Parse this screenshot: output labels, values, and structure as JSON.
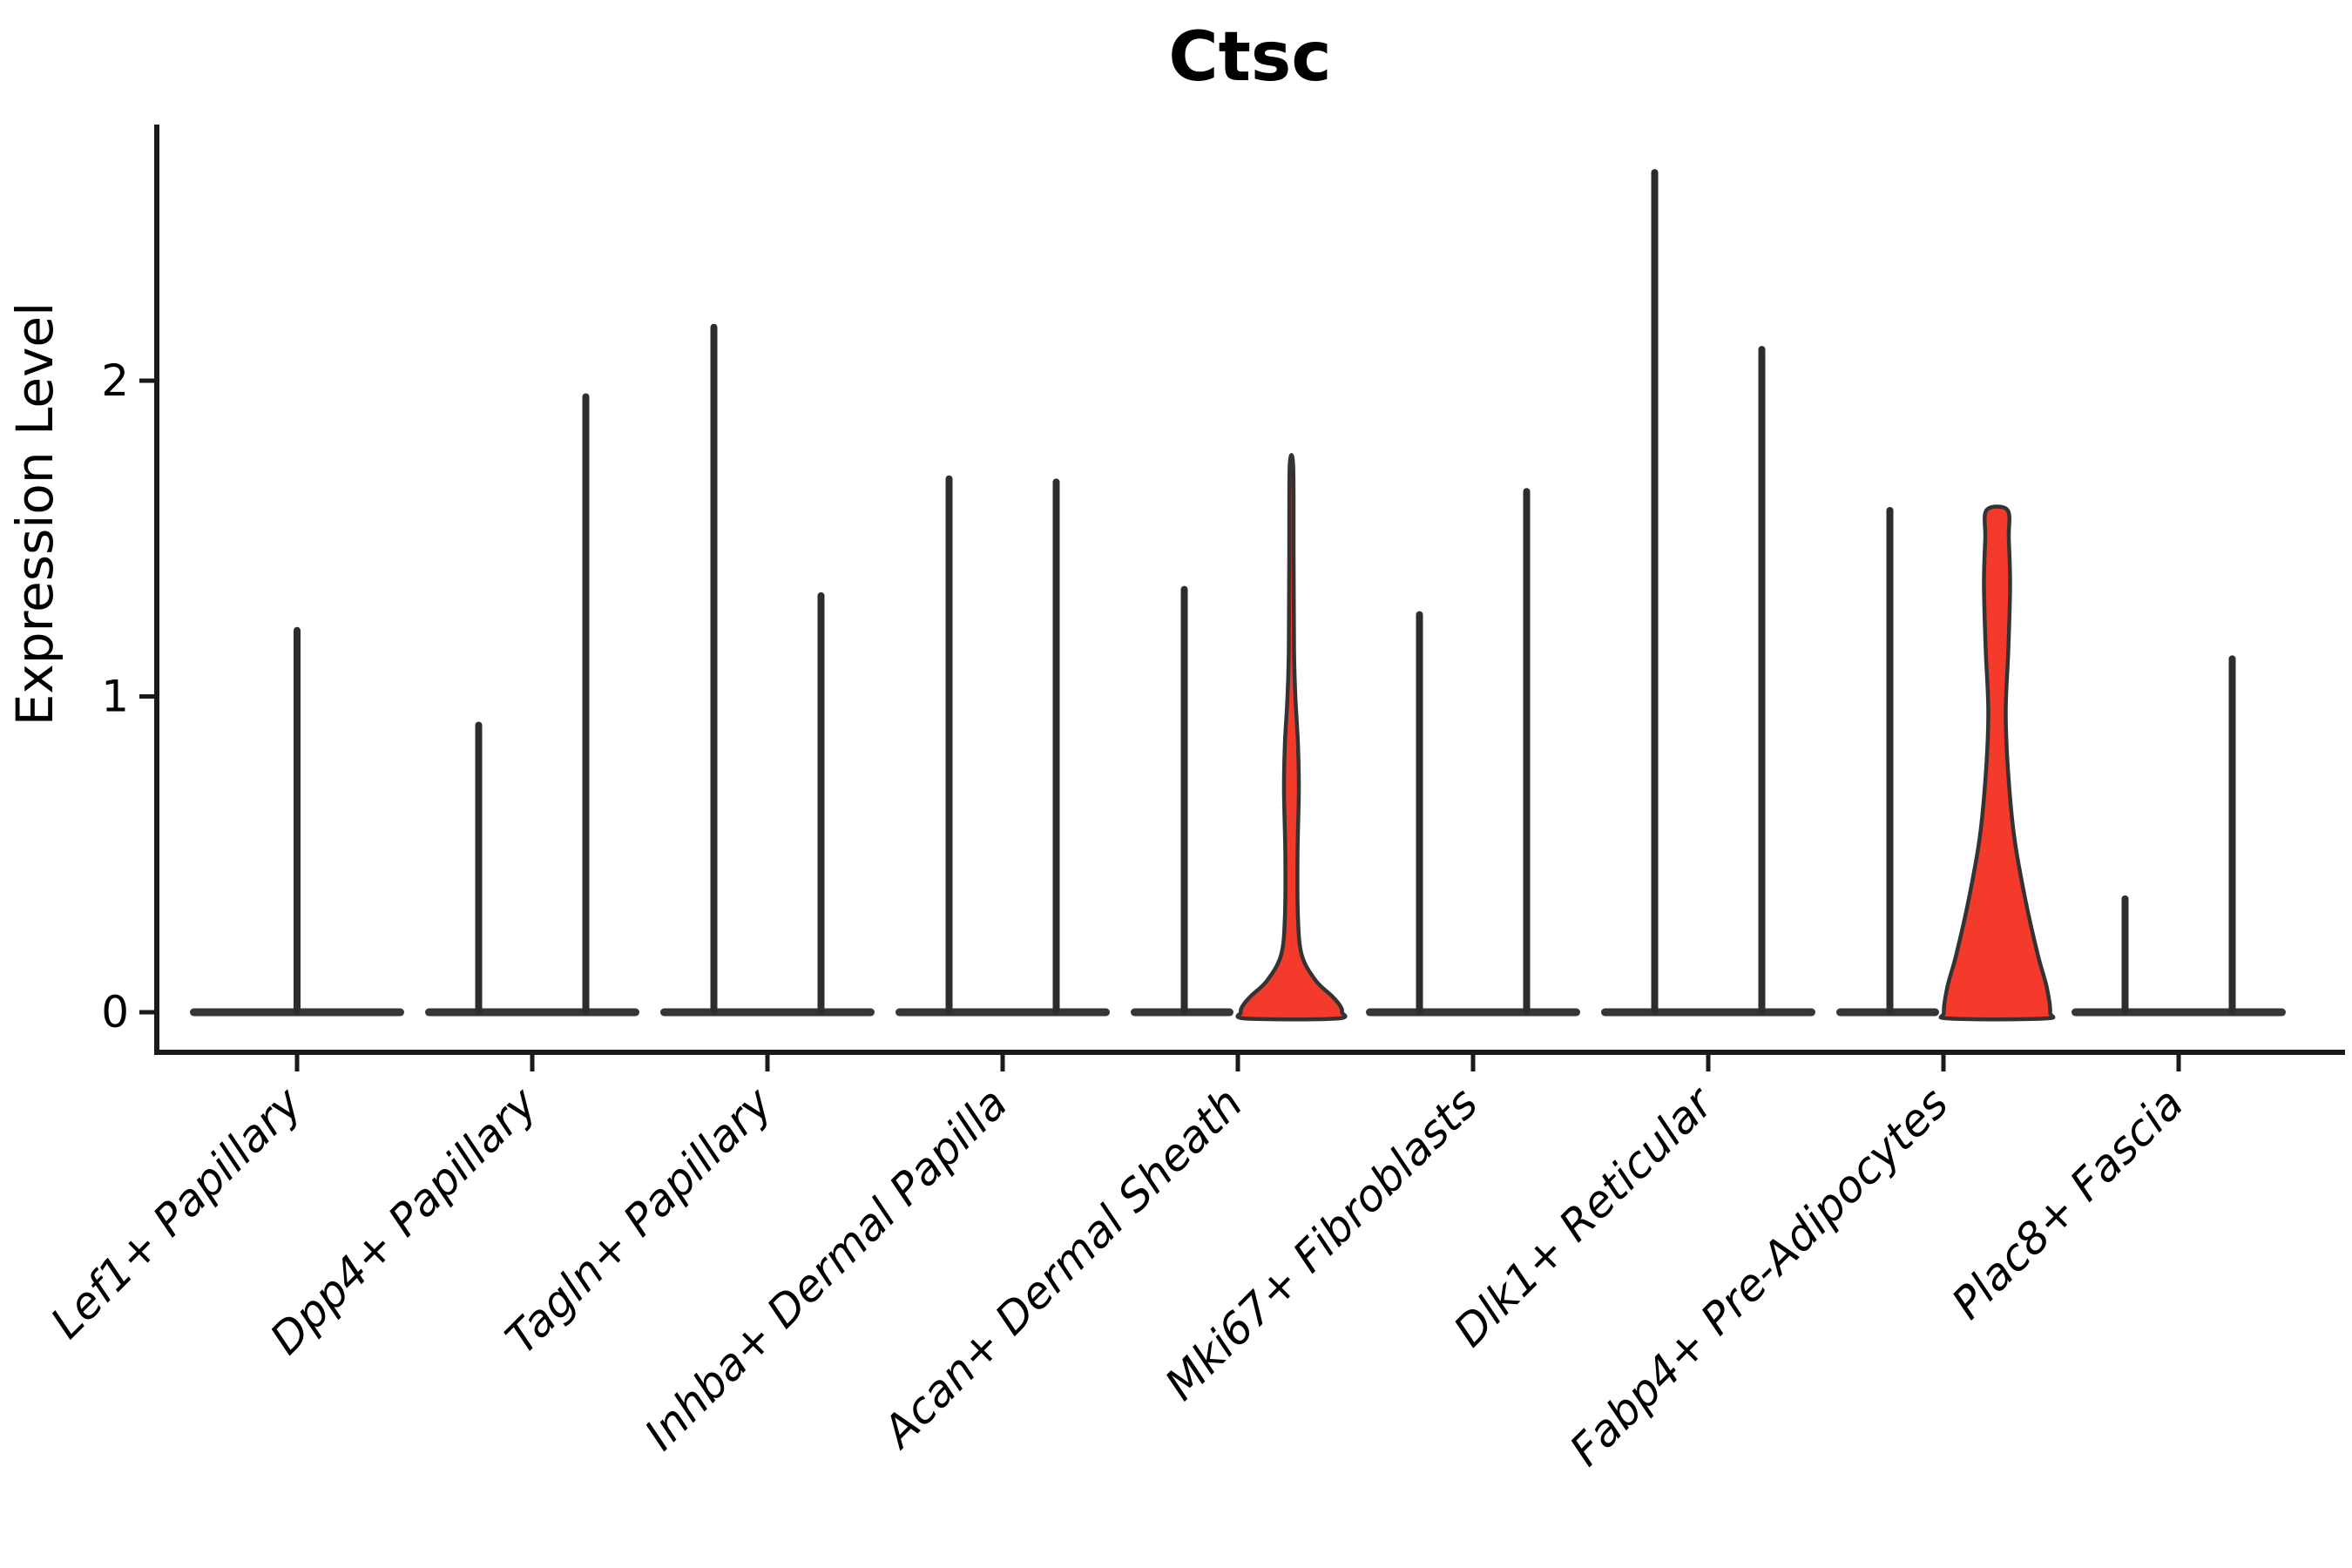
{
  "chart_data": {
    "type": "violin",
    "title": "Ctsc",
    "ylabel": "Expression Level",
    "xlabel": "",
    "yticks": [
      0,
      1,
      2
    ],
    "ylim": [
      -0.13,
      2.81
    ],
    "grid": false,
    "legend": "none",
    "categories": [
      "Lef1+ Papillary",
      "Dpp4+ Papillary",
      "Tagln+ Papillary",
      "Inhba+ Dermal Papilla",
      "Acan+ Dermal Sheath",
      "Mki67+ Fibroblasts",
      "Dlk1+ Reticular",
      "Fabp4+ Pre-Adipocytes",
      "Plac8+ Fascia"
    ],
    "colors": {
      "highlight_fill": "#f43b2b",
      "ink": "#2d2d2d",
      "body_bar": "#363636",
      "axis": "#1a1a1a",
      "outline": "#333333"
    },
    "description": "Per category: violins hug 0 (wide flat base) with thin density spikes up to the max expression value; two violins are red-filled with visible density bodies.",
    "violins": [
      {
        "category": 0,
        "slot": "full",
        "max": 1.22,
        "fill": "white",
        "profile": "spike"
      },
      {
        "category": 1,
        "slot": "left",
        "max": 0.92,
        "fill": "white",
        "profile": "spike"
      },
      {
        "category": 1,
        "slot": "right",
        "max": 1.96,
        "fill": "white",
        "profile": "spike"
      },
      {
        "category": 2,
        "slot": "left",
        "max": 2.18,
        "fill": "white",
        "profile": "spike"
      },
      {
        "category": 2,
        "slot": "right",
        "max": 1.33,
        "fill": "white",
        "profile": "spike"
      },
      {
        "category": 3,
        "slot": "left",
        "max": 1.7,
        "fill": "white",
        "profile": "spike"
      },
      {
        "category": 3,
        "slot": "right",
        "max": 1.69,
        "fill": "white",
        "profile": "spike"
      },
      {
        "category": 4,
        "slot": "left",
        "max": 1.35,
        "fill": "white",
        "profile": "spike"
      },
      {
        "category": 4,
        "slot": "right",
        "max": 1.73,
        "fill": "#f43b2b",
        "profile": "shaped",
        "shape": [
          [
            1.73,
            2
          ],
          [
            1.45,
            2.5
          ],
          [
            1.15,
            3
          ],
          [
            1.0,
            4.5
          ],
          [
            0.85,
            7.5
          ],
          [
            0.7,
            8.5
          ],
          [
            0.5,
            7
          ],
          [
            0.3,
            7.5
          ],
          [
            0.18,
            12
          ],
          [
            0.1,
            28
          ],
          [
            0.05,
            47
          ],
          [
            0.02,
            56
          ],
          [
            0.0,
            58
          ],
          [
            -0.02,
            52
          ]
        ]
      },
      {
        "category": 5,
        "slot": "left",
        "max": 1.27,
        "fill": "white",
        "profile": "spike"
      },
      {
        "category": 5,
        "slot": "right",
        "max": 1.66,
        "fill": "white",
        "profile": "spike"
      },
      {
        "category": 6,
        "slot": "left",
        "max": 2.67,
        "fill": "white",
        "profile": "spike"
      },
      {
        "category": 6,
        "slot": "right",
        "max": 2.11,
        "fill": "white",
        "profile": "spike"
      },
      {
        "category": 7,
        "slot": "left",
        "max": 1.6,
        "fill": "white",
        "profile": "spike"
      },
      {
        "category": 7,
        "slot": "right",
        "max": 1.59,
        "fill": "#f43b2b",
        "profile": "shaped",
        "shape": [
          [
            1.59,
            12
          ],
          [
            1.5,
            13.5
          ],
          [
            1.35,
            15
          ],
          [
            1.15,
            13
          ],
          [
            0.95,
            10
          ],
          [
            0.75,
            13
          ],
          [
            0.55,
            20
          ],
          [
            0.35,
            33
          ],
          [
            0.18,
            47
          ],
          [
            0.08,
            57
          ],
          [
            0.0,
            61
          ],
          [
            -0.02,
            54
          ]
        ]
      },
      {
        "category": 8,
        "slot": "left",
        "max": 0.37,
        "fill": "white",
        "profile": "spike"
      },
      {
        "category": 8,
        "slot": "right",
        "max": 1.13,
        "fill": "white",
        "profile": "spike"
      }
    ]
  }
}
